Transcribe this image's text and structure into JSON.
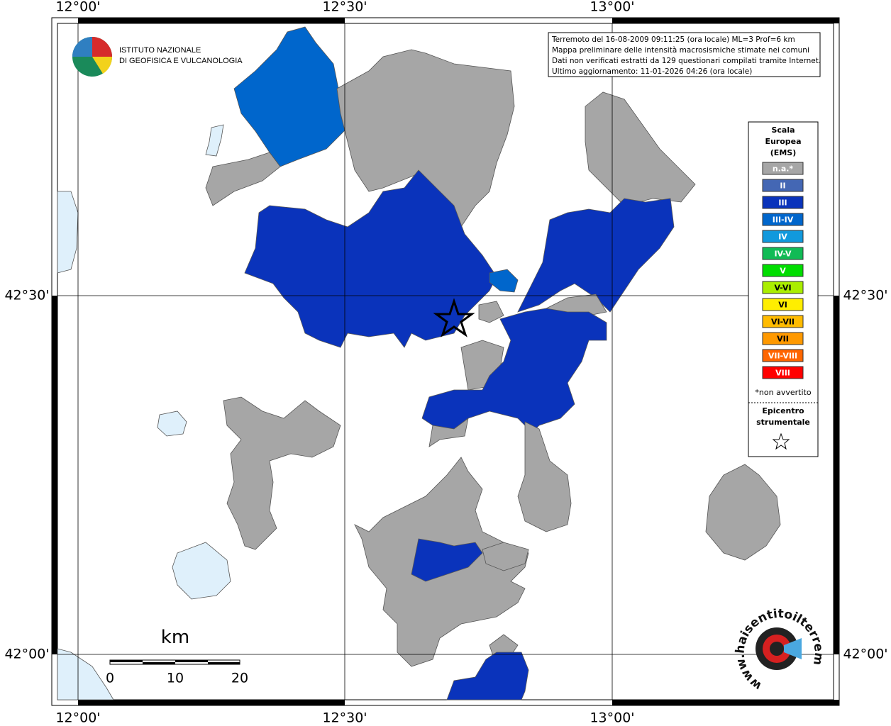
{
  "axes": {
    "top": [
      "12°00'",
      "12°30'",
      "13°00'"
    ],
    "bottom": [
      "12°00'",
      "12°30'",
      "13°00'"
    ],
    "left": [
      "42°30'",
      "42°00'"
    ],
    "right": [
      "42°30'",
      "42°00'"
    ]
  },
  "info": {
    "lines": [
      "Terremoto del 16-08-2009 09:11:25 (ora locale) ML=3 Prof=6 km",
      "Mappa preliminare delle intensità macrosismiche stimate nei comuni",
      "Dati non verificati estratti da 129 questionari compilati tramite Internet.",
      "Ultimo aggiornamento: 11-01-2026 04:26 (ora locale)"
    ]
  },
  "logo": {
    "lines": [
      "ISTITUTO NAZIONALE",
      "DI GEOFISICA E VULCANOLOGIA"
    ]
  },
  "legend": {
    "title": [
      "Scala",
      "Europea",
      "(EMS)"
    ],
    "items": [
      {
        "label": "n.a.*",
        "color": "#a6a6a6"
      },
      {
        "label": "II",
        "color": "#4467b4"
      },
      {
        "label": "III",
        "color": "#0a33bb"
      },
      {
        "label": "III-IV",
        "color": "#0066cc"
      },
      {
        "label": "IV",
        "color": "#1199dd"
      },
      {
        "label": "IV-V",
        "color": "#11bb55"
      },
      {
        "label": "V",
        "color": "#00dd00"
      },
      {
        "label": "V-VI",
        "color": "#aaee00"
      },
      {
        "label": "VI",
        "color": "#ffee00"
      },
      {
        "label": "VI-VII",
        "color": "#ffbb00"
      },
      {
        "label": "VII",
        "color": "#ff9900"
      },
      {
        "label": "VII-VIII",
        "color": "#ff6600"
      },
      {
        "label": "VIII",
        "color": "#ff0000"
      }
    ],
    "note": "*non avvertito",
    "epicenter": [
      "Epicentro",
      "strumentale"
    ]
  },
  "scale_bar": {
    "unit": "km",
    "labels": [
      "0",
      "10",
      "20"
    ]
  },
  "watermark": "www.haisentitoilterremoto.it"
}
